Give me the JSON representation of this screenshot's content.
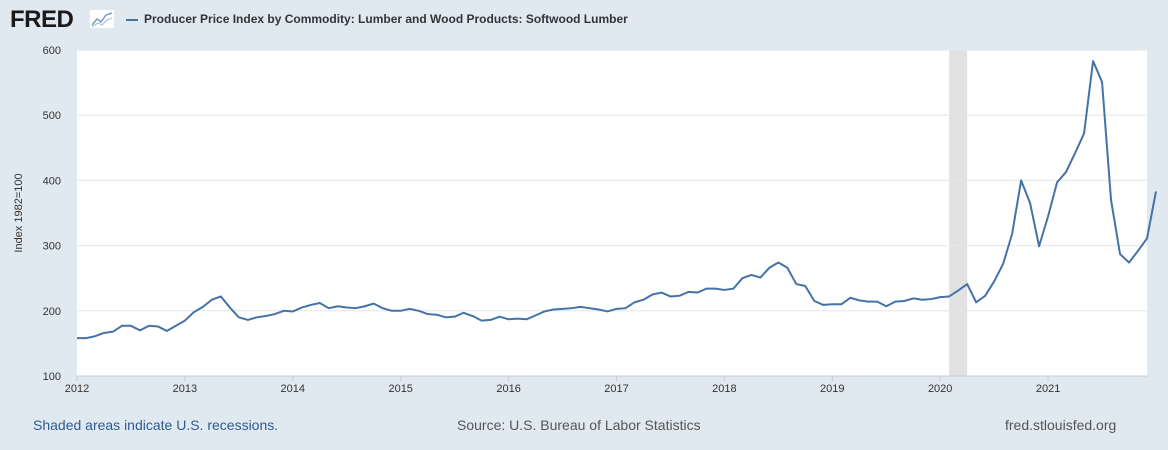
{
  "header": {
    "logo_text": "FRED",
    "logo_icon": "chart-trend-icon",
    "series_title": "Producer Price Index by Commodity: Lumber and Wood Products: Softwood Lumber"
  },
  "colors": {
    "series": "#4572a7",
    "recession": "#e1e1e1",
    "gridline": "#e6e6e6",
    "background": "#e1e9f0",
    "plot_background": "#ffffff"
  },
  "chart_data": {
    "type": "line",
    "title": "",
    "xlabel": "",
    "ylabel": "Index 1982=100",
    "ylim": [
      100,
      600
    ],
    "yticks": [
      100,
      200,
      300,
      400,
      500,
      600
    ],
    "xlim": [
      "2012-01-01",
      "2021-12-01"
    ],
    "xticks": [
      "2012",
      "2013",
      "2014",
      "2015",
      "2016",
      "2017",
      "2018",
      "2019",
      "2020",
      "2021"
    ],
    "grid": true,
    "recessions": [
      {
        "start": "2020-02-01",
        "end": "2020-04-01"
      }
    ],
    "series": [
      {
        "start": "2012-01",
        "frequency": "monthly",
        "values": [
          158,
          158,
          161,
          166,
          168,
          177,
          177,
          170,
          177,
          176,
          169,
          177,
          185,
          198,
          206,
          217,
          222,
          205,
          190,
          186,
          190,
          192,
          195,
          200,
          199,
          205,
          209,
          212,
          204,
          207,
          205,
          204,
          207,
          211,
          204,
          200,
          200,
          203,
          200,
          195,
          194,
          190,
          191,
          197,
          192,
          185,
          186,
          191,
          187,
          188,
          187,
          193,
          199,
          202,
          203,
          204,
          206,
          204,
          202,
          199,
          203,
          204,
          213,
          217,
          225,
          228,
          222,
          223,
          229,
          228,
          234,
          234,
          232,
          234,
          250,
          255,
          251,
          266,
          274,
          266,
          241,
          238,
          215,
          209,
          210,
          210,
          220,
          216,
          214,
          214,
          207,
          214,
          215,
          219,
          217,
          218,
          221,
          222,
          231,
          241,
          213,
          223,
          245,
          272,
          318,
          400,
          365,
          299,
          345,
          397,
          413,
          442,
          472,
          583,
          551,
          370,
          287,
          274,
          292,
          311,
          383
        ]
      }
    ]
  },
  "footer": {
    "recession_note": "Shaded areas indicate U.S. recessions.",
    "source": "Source: U.S. Bureau of Labor Statistics",
    "site": "fred.stlouisfed.org"
  }
}
